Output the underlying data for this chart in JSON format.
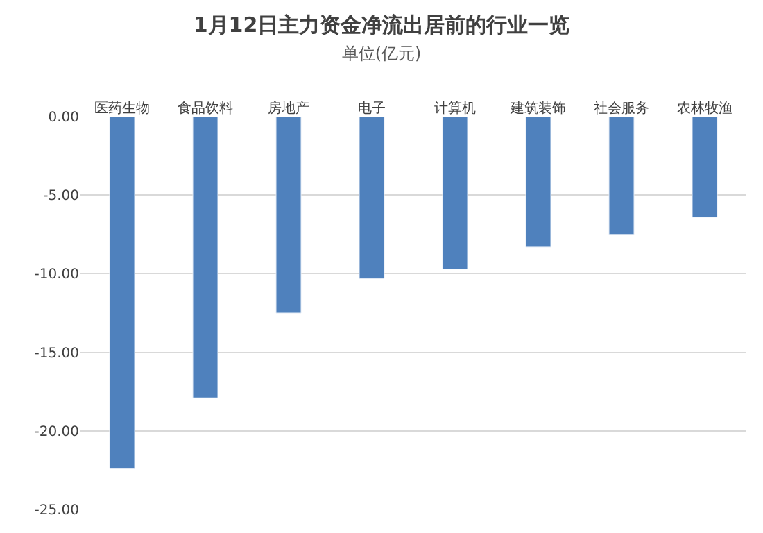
{
  "chart_data": {
    "type": "bar",
    "title": "1月12日主力资金净流出居前的行业一览",
    "subtitle": "单位(亿元)",
    "categories": [
      "医药生物",
      "食品饮料",
      "房地产",
      "电子",
      "计算机",
      "建筑装饰",
      "社会服务",
      "农林牧渔"
    ],
    "values": [
      -22.4,
      -17.9,
      -12.5,
      -10.3,
      -9.7,
      -8.3,
      -7.5,
      -6.4
    ],
    "color": "#4f81bd",
    "ylim": [
      -25,
      0
    ],
    "yticks": [
      {
        "value": 0,
        "label": "0.00"
      },
      {
        "value": -5,
        "label": "-5.00"
      },
      {
        "value": -10,
        "label": "-10.00"
      },
      {
        "value": -15,
        "label": "-15.00"
      },
      {
        "value": -20,
        "label": "-20.00"
      },
      {
        "value": -25,
        "label": "-25.00"
      }
    ],
    "grid": "y"
  }
}
